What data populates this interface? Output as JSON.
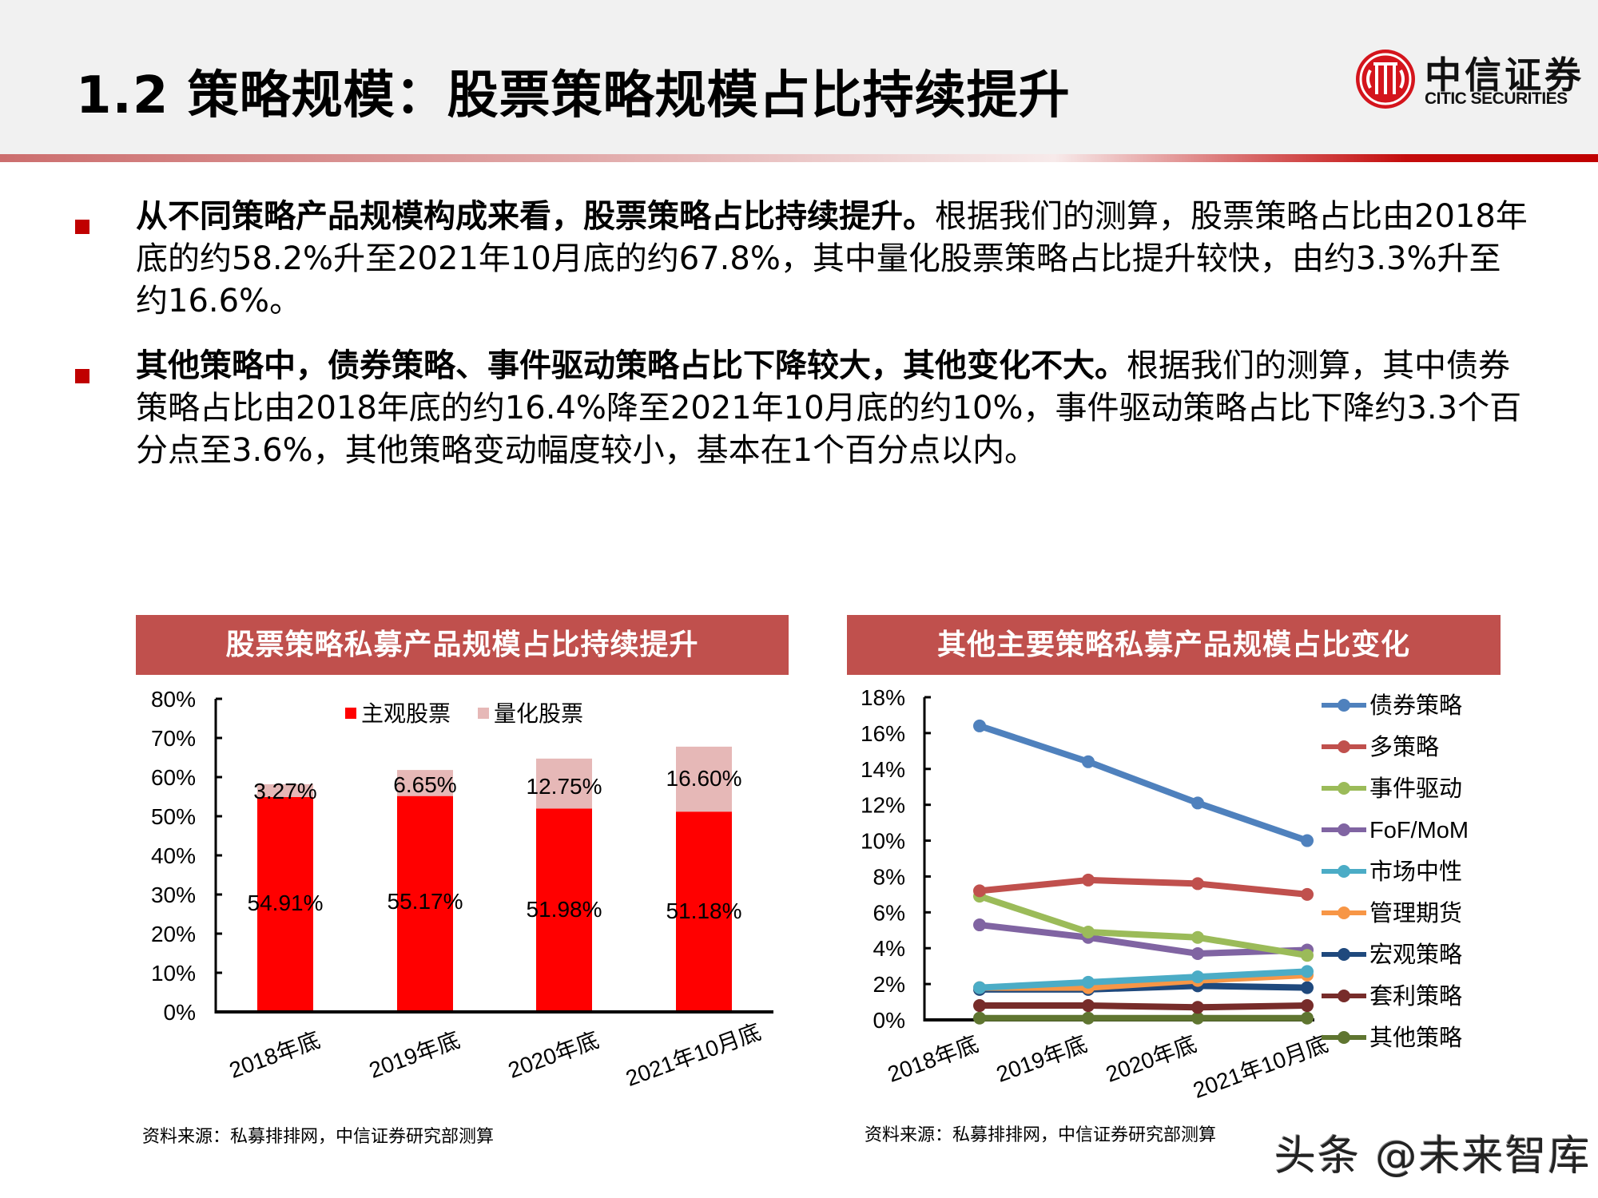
{
  "header": {
    "title": "1.2 策略规模：股票策略规模占比持续提升",
    "logo": {
      "name_cn": "中信证券",
      "name_en": "CITIC SECURITIES",
      "icon": "citic-logo-icon",
      "color": "#d4141c"
    }
  },
  "bullets": [
    {
      "bold": "从不同策略产品规模构成来看，股票策略占比持续提升。",
      "text": "根据我们的测算，股票策略占比由2018年底的约58.2%升至2021年10月底的约67.8%，其中量化股票策略占比提升较快，由约3.3%升至约16.6%。"
    },
    {
      "bold": "其他策略中，债券策略、事件驱动策略占比下降较大，其他变化不大。",
      "text": "根据我们的测算，其中债券策略占比由2018年底的约16.4%降至2021年10月底的约10%，事件驱动策略占比下降约3.3个百分点至3.6%，其他策略变动幅度较小，基本在1个百分点以内。"
    }
  ],
  "left_chart": {
    "title": "股票策略私募产品规模占比持续提升",
    "source": "资料来源：私募排排网，中信证券研究部测算"
  },
  "right_chart": {
    "title": "其他主要策略私募产品规模占比变化",
    "source": "资料来源：私募排排网，中信证券研究部测算"
  },
  "watermark": "头条 @未来智库",
  "colors": {
    "accent": "#c00000",
    "chart_header": "#c0504d",
    "subjective": "#ff0000",
    "quant": "#e6b8b7"
  },
  "chart_data": [
    {
      "type": "bar",
      "stacked": true,
      "title": "股票策略私募产品规模占比持续提升",
      "categories": [
        "2018年底",
        "2019年底",
        "2020年底",
        "2021年10月底"
      ],
      "series": [
        {
          "name": "主观股票",
          "color": "#ff0000",
          "values": [
            54.91,
            55.17,
            51.98,
            51.18
          ],
          "labels": [
            "54.91%",
            "55.17%",
            "51.98%",
            "51.18%"
          ]
        },
        {
          "name": "量化股票",
          "color": "#e6b8b7",
          "values": [
            3.27,
            6.65,
            12.75,
            16.6
          ],
          "labels": [
            "3.27%",
            "6.65%",
            "12.75%",
            "16.60%"
          ]
        }
      ],
      "xlabel": "",
      "ylabel": "",
      "ylim": [
        0,
        80
      ],
      "yticks": [
        "0%",
        "10%",
        "20%",
        "30%",
        "40%",
        "50%",
        "60%",
        "70%",
        "80%"
      ],
      "grid": false,
      "legend_position": "top"
    },
    {
      "type": "line",
      "title": "其他主要策略私募产品规模占比变化",
      "categories": [
        "2018年底",
        "2019年底",
        "2020年底",
        "2021年10月底"
      ],
      "series": [
        {
          "name": "债券策略",
          "color": "#4f81bd",
          "values": [
            16.4,
            14.4,
            12.1,
            10.0
          ]
        },
        {
          "name": "多策略",
          "color": "#c0504d",
          "values": [
            7.2,
            7.8,
            7.6,
            7.0
          ]
        },
        {
          "name": "事件驱动",
          "color": "#9bbb59",
          "values": [
            6.9,
            4.9,
            4.6,
            3.6
          ]
        },
        {
          "name": "FoF/MoM",
          "color": "#8064a2",
          "values": [
            5.3,
            4.6,
            3.7,
            3.9
          ]
        },
        {
          "name": "市场中性",
          "color": "#4bacc6",
          "values": [
            1.8,
            2.1,
            2.4,
            2.7
          ]
        },
        {
          "name": "管理期货",
          "color": "#f79646",
          "values": [
            1.8,
            1.8,
            2.2,
            2.5
          ]
        },
        {
          "name": "宏观策略",
          "color": "#1f497d",
          "values": [
            1.7,
            1.7,
            1.9,
            1.8
          ]
        },
        {
          "name": "套利策略",
          "color": "#772c2a",
          "values": [
            0.8,
            0.8,
            0.7,
            0.8
          ]
        },
        {
          "name": "其他策略",
          "color": "#5f7530",
          "values": [
            0.1,
            0.1,
            0.1,
            0.1
          ]
        }
      ],
      "xlabel": "",
      "ylabel": "",
      "ylim": [
        0,
        18
      ],
      "yticks": [
        "0%",
        "2%",
        "4%",
        "6%",
        "8%",
        "10%",
        "12%",
        "14%",
        "16%",
        "18%"
      ],
      "grid": false,
      "legend_position": "right"
    }
  ]
}
